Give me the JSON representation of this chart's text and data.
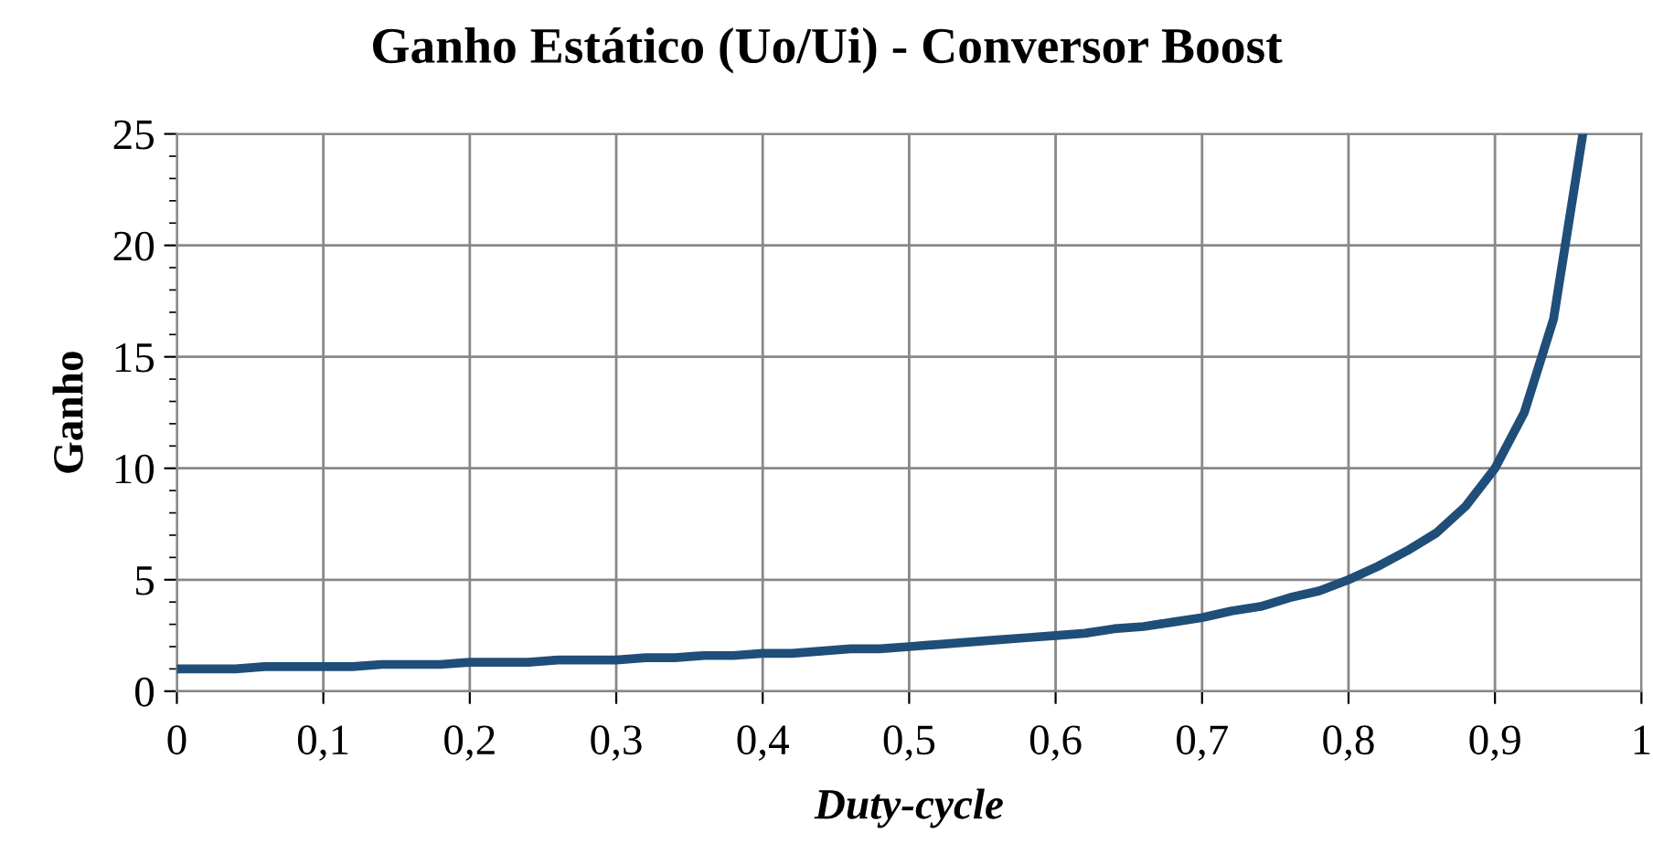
{
  "chart_data": {
    "type": "line",
    "title": "Ganho Estático (Uo/Ui) - Conversor Boost",
    "xlabel": "Duty-cycle",
    "ylabel": "Ganho",
    "x": [
      0,
      0.02,
      0.04,
      0.06,
      0.08,
      0.1,
      0.12,
      0.14,
      0.16,
      0.18,
      0.2,
      0.22,
      0.24,
      0.26,
      0.28,
      0.3,
      0.32,
      0.34,
      0.36,
      0.38,
      0.4,
      0.42,
      0.44,
      0.46,
      0.48,
      0.5,
      0.52,
      0.54,
      0.56,
      0.58,
      0.6,
      0.62,
      0.64,
      0.66,
      0.68,
      0.7,
      0.72,
      0.74,
      0.76,
      0.78,
      0.8,
      0.82,
      0.84,
      0.86,
      0.88,
      0.9,
      0.92,
      0.94,
      0.96
    ],
    "series": [
      {
        "color": "#1f4e79",
        "values": [
          1,
          1,
          1,
          1.1,
          1.1,
          1.1,
          1.1,
          1.2,
          1.2,
          1.2,
          1.3,
          1.3,
          1.3,
          1.4,
          1.4,
          1.4,
          1.5,
          1.5,
          1.6,
          1.6,
          1.7,
          1.7,
          1.8,
          1.9,
          1.9,
          2,
          2.1,
          2.2,
          2.3,
          2.4,
          2.5,
          2.6,
          2.8,
          2.9,
          3.1,
          3.3,
          3.6,
          3.8,
          4.2,
          4.5,
          5,
          5.6,
          6.3,
          7.1,
          8.3,
          10,
          12.5,
          16.7,
          25
        ]
      }
    ],
    "xlim": [
      0,
      1
    ],
    "ylim": [
      0,
      25
    ],
    "xticks": [
      0,
      {
        "value": 0.1,
        "label": "0,1"
      },
      {
        "value": 0.2,
        "label": "0,2"
      },
      {
        "value": 0.3,
        "label": "0,3"
      },
      {
        "value": 0.4,
        "label": "0,4"
      },
      {
        "value": 0.5,
        "label": "0,5"
      },
      {
        "value": 0.6,
        "label": "0,6"
      },
      {
        "value": 0.7,
        "label": "0,7"
      },
      {
        "value": 0.8,
        "label": "0,8"
      },
      {
        "value": 0.9,
        "label": "0,9"
      },
      1
    ],
    "yticks": [
      0,
      5,
      10,
      15,
      20,
      25
    ],
    "grid": true,
    "marker": "none",
    "line_style": "solid",
    "legend": false
  }
}
